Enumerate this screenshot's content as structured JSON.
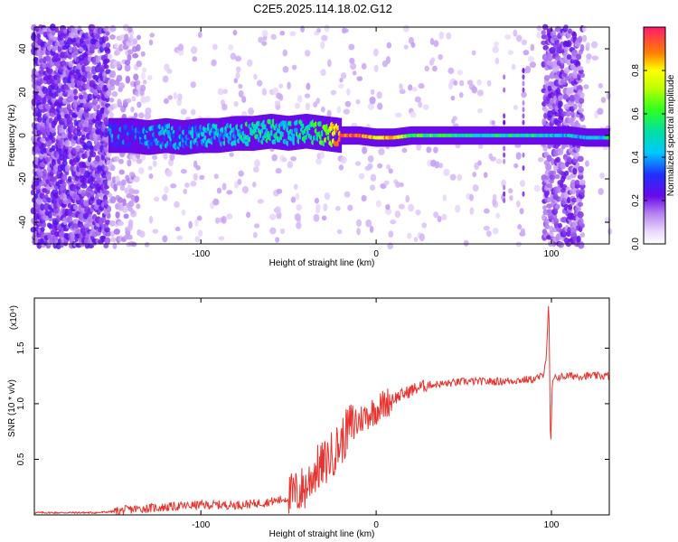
{
  "title": "C2E5.2025.114.18.02.G12",
  "chart_data": [
    {
      "type": "heatmap",
      "xlabel": "Height of straight line (km)",
      "ylabel": "Frequency (Hz)",
      "xlim": [
        -195,
        133
      ],
      "ylim": [
        -50,
        50
      ],
      "xticks": [
        -100,
        0,
        100
      ],
      "xtick_labels": [
        "-100",
        "0",
        "100"
      ],
      "yticks": [
        -40,
        -20,
        0,
        20,
        40
      ],
      "ytick_labels": [
        "-40",
        "-20",
        "0",
        "20",
        "40"
      ],
      "colorbar": {
        "label": "Normalized spectral amplitude",
        "range": [
          0,
          1
        ],
        "ticks": [
          0.0,
          0.2,
          0.4,
          0.6,
          0.8
        ],
        "tick_labels": [
          "0.0",
          "0.2",
          "0.4",
          "0.6",
          "0.8"
        ]
      },
      "ridge": {
        "x": [
          -152,
          -140,
          -130,
          -120,
          -110,
          -100,
          -90,
          -80,
          -70,
          -60,
          -50,
          -40,
          -30,
          -20,
          -10,
          0,
          10,
          20,
          40,
          60,
          80,
          95,
          100,
          110,
          120,
          133
        ],
        "freq": [
          0,
          0,
          -1,
          0,
          -1,
          0,
          0,
          1,
          1,
          2,
          1,
          2,
          1,
          0,
          0,
          -1,
          -1,
          0,
          0,
          0,
          0,
          0,
          0,
          0,
          -1,
          -1
        ],
        "amplitude": [
          0.35,
          0.3,
          0.35,
          0.4,
          0.35,
          0.4,
          0.45,
          0.45,
          0.5,
          0.5,
          0.45,
          0.5,
          0.6,
          0.9,
          0.95,
          0.8,
          0.85,
          0.6,
          0.55,
          0.5,
          0.5,
          0.5,
          0.45,
          0.45,
          0.45,
          0.5
        ]
      }
    },
    {
      "type": "line",
      "xlabel": "Height of straight line (km)",
      "ylabel": "SNR (10 * v/v)",
      "scale_label": "(x10⁴)",
      "xlim": [
        -195,
        133
      ],
      "ylim": [
        0,
        1.95
      ],
      "xticks": [
        -100,
        0,
        100
      ],
      "xtick_labels": [
        "-100",
        "0",
        "100"
      ],
      "yticks": [
        0.5,
        1.0,
        1.5
      ],
      "ytick_labels": [
        "0.5",
        "1.0",
        "1.5"
      ],
      "color": "#e8332e",
      "series": [
        {
          "x": [
            -195,
            -180,
            -160,
            -150,
            -140,
            -130,
            -120,
            -110,
            -100,
            -90,
            -80,
            -70,
            -60,
            -50,
            -45,
            -40,
            -35,
            -30,
            -25,
            -20,
            -15,
            -10,
            -5,
            0,
            5,
            10,
            15,
            20,
            25,
            30,
            40,
            50,
            60,
            70,
            80,
            90,
            95,
            97,
            98.5,
            99.5,
            100.5,
            102,
            105,
            110,
            120,
            133
          ],
          "y": [
            0.02,
            0.02,
            0.02,
            0.03,
            0.05,
            0.06,
            0.07,
            0.08,
            0.09,
            0.09,
            0.09,
            0.1,
            0.12,
            0.15,
            0.2,
            0.25,
            0.4,
            0.45,
            0.55,
            0.65,
            0.8,
            0.85,
            0.9,
            0.95,
            1.0,
            1.05,
            1.08,
            1.12,
            1.15,
            1.17,
            1.18,
            1.2,
            1.2,
            1.2,
            1.21,
            1.22,
            1.25,
            1.4,
            1.95,
            0.55,
            1.2,
            1.24,
            1.24,
            1.25,
            1.25,
            1.25
          ]
        }
      ]
    }
  ]
}
